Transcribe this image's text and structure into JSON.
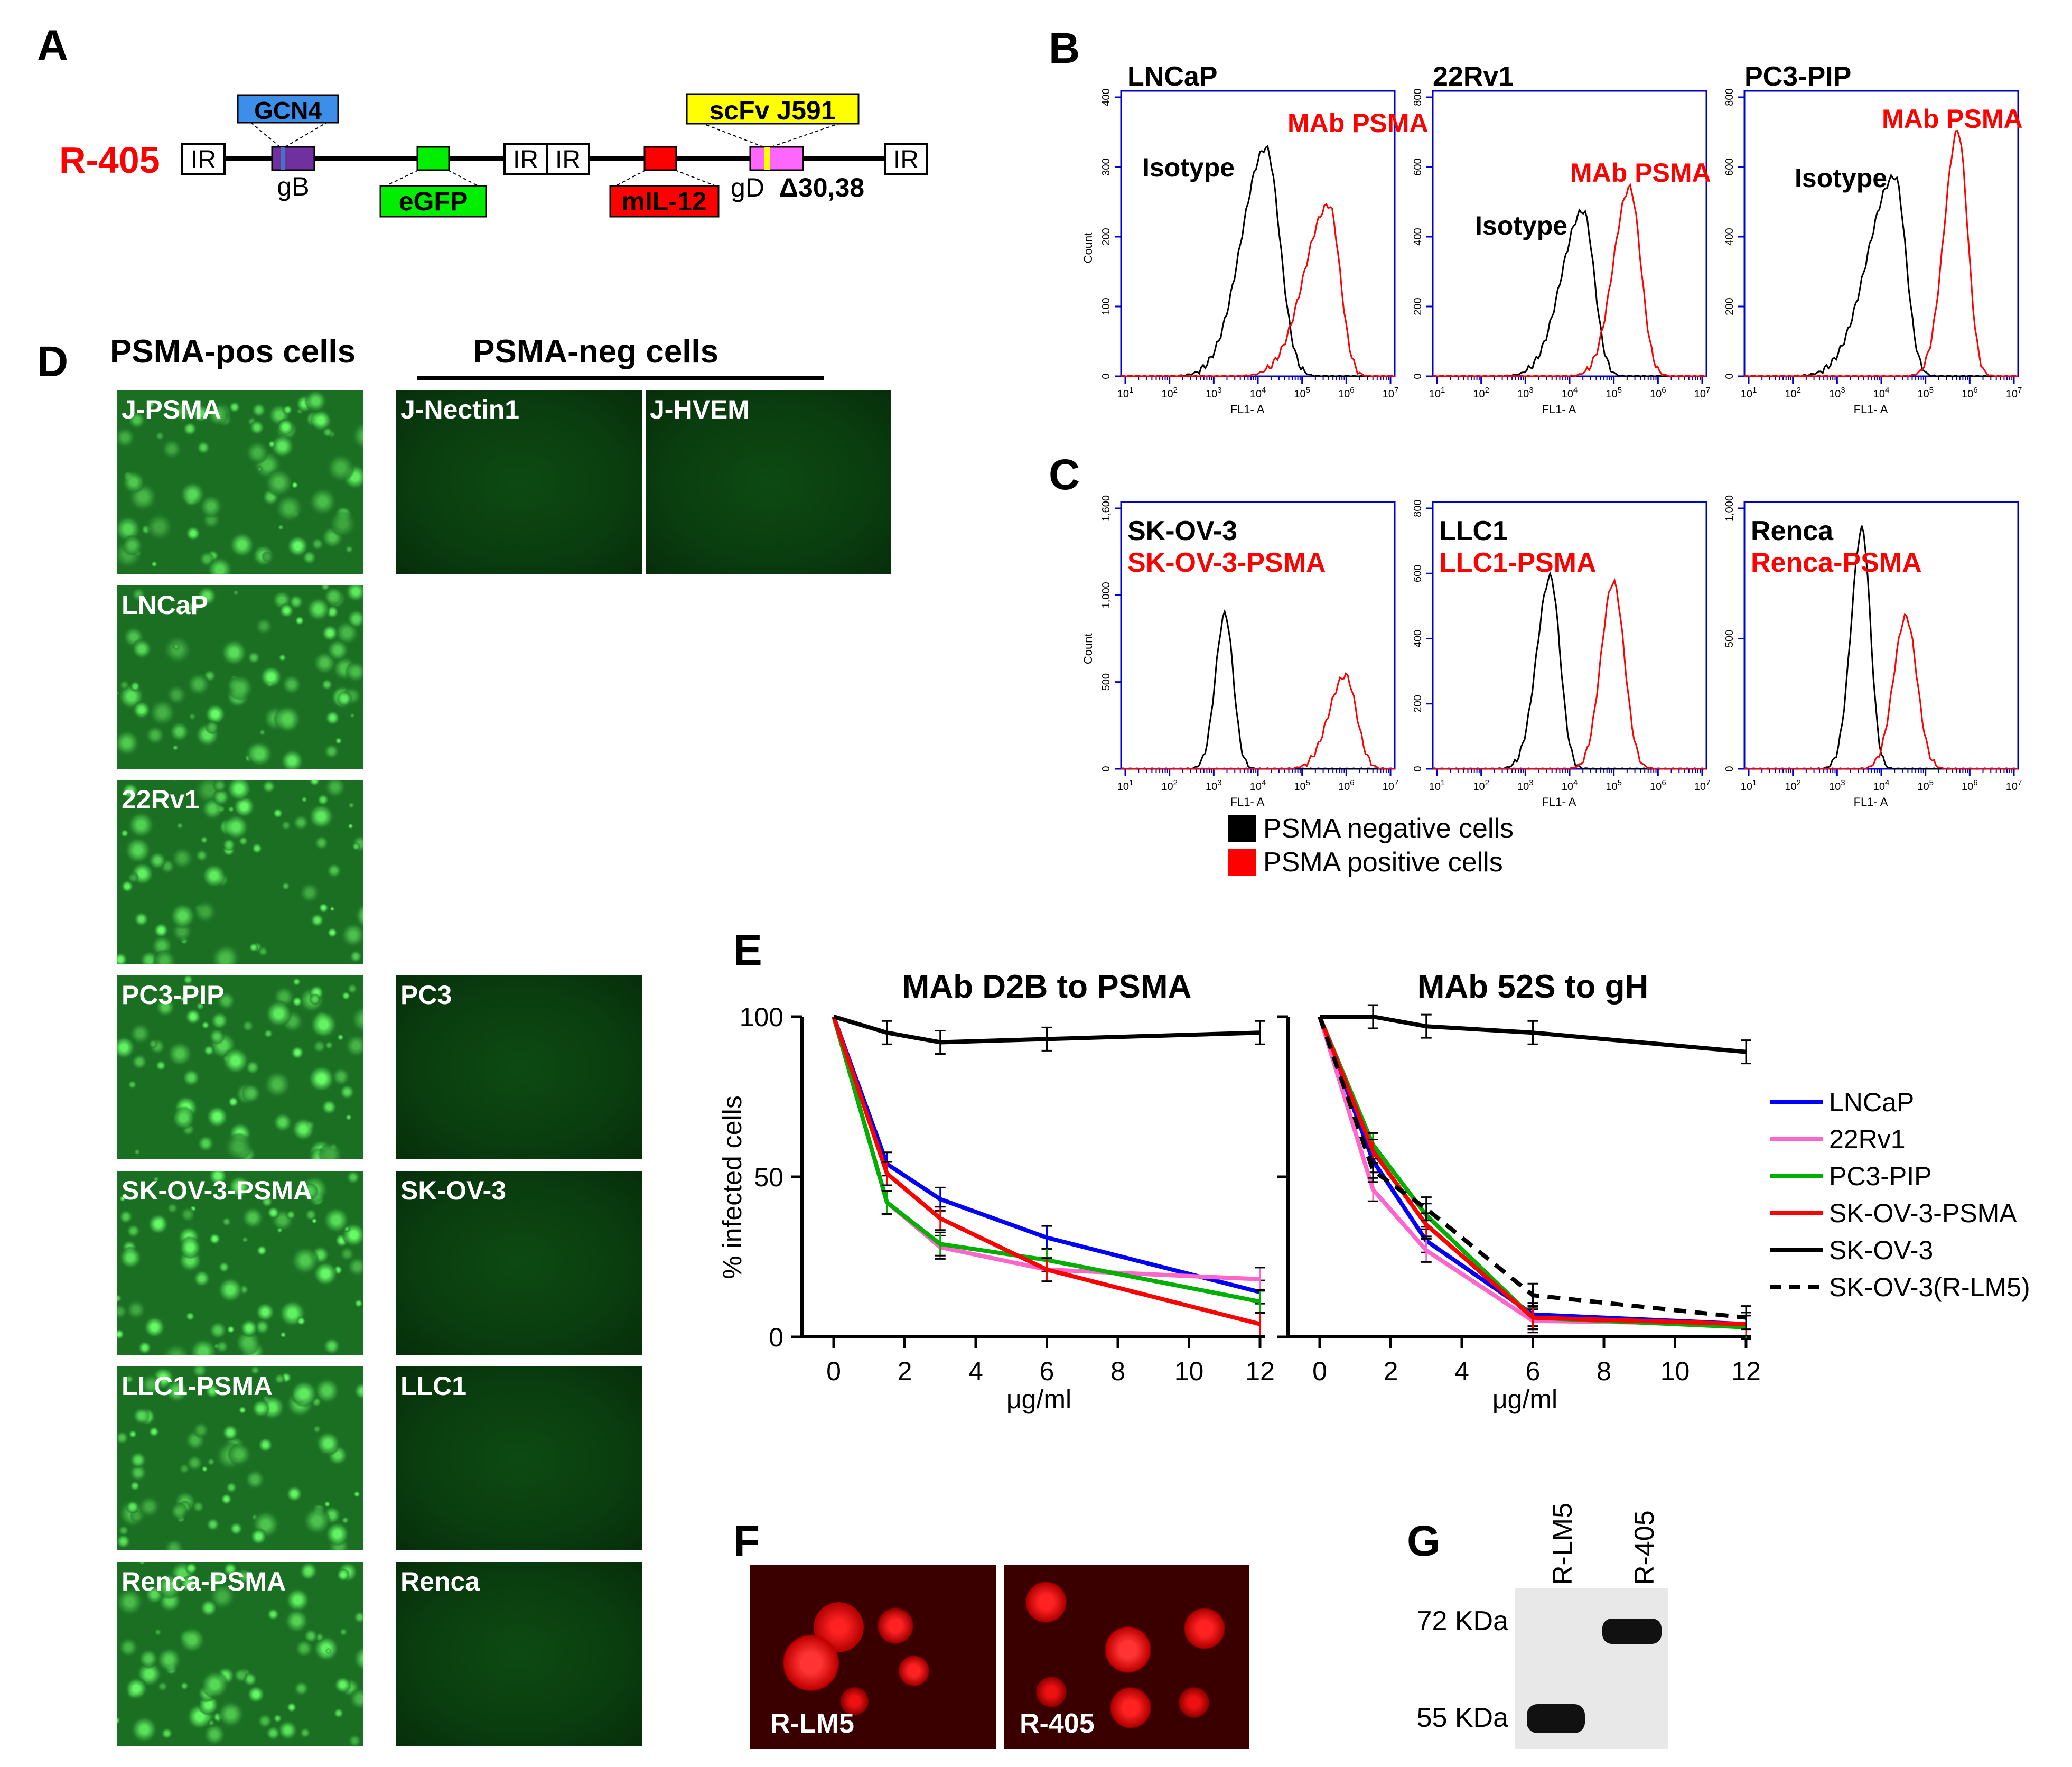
{
  "panels": {
    "a": "A",
    "b": "B",
    "c": "C",
    "d": "D",
    "e": "E",
    "f": "F",
    "g": "G"
  },
  "construct": {
    "name": "R-405",
    "ir": "IR",
    "gcn4": "GCN4",
    "gb": "gB",
    "egfp": "eGFP",
    "mil12": "mIL-12",
    "scfv": "scFv J591",
    "gd": "gD",
    "delta": "Δ30,38"
  },
  "flow_common": {
    "count_label": "Count",
    "xlabel": "FL1- A",
    "xticks": [
      "10^1",
      "10^2",
      "10^3",
      "10^4",
      "10^5",
      "10^6",
      "10^7"
    ]
  },
  "flow_b": [
    {
      "title": "LNCaP",
      "isotype": "Isotype",
      "mab": "MAb PSMA",
      "yticks": [
        "0",
        "100",
        "200",
        "300",
        "400"
      ],
      "show_count": true
    },
    {
      "title": "22Rv1",
      "isotype": "Isotype",
      "mab": "MAb PSMA",
      "yticks": [
        "0",
        "200",
        "400",
        "600",
        "800"
      ],
      "show_count": false
    },
    {
      "title": "PC3-PIP",
      "isotype": "Isotype",
      "mab": "MAb PSMA",
      "yticks": [
        "0",
        "200",
        "400",
        "600",
        "800"
      ],
      "show_count": false
    }
  ],
  "flow_c": [
    {
      "neg": "SK-OV-3",
      "pos": "SK-OV-3-PSMA",
      "yticks": [
        "0",
        "500",
        "1,000",
        "1,600"
      ],
      "show_count": true
    },
    {
      "neg": "LLC1",
      "pos": "LLC1-PSMA",
      "yticks": [
        "0",
        "200",
        "400",
        "600",
        "800"
      ],
      "show_count": false
    },
    {
      "neg": "Renca",
      "pos": "Renca-PSMA",
      "yticks": [
        "0",
        "500",
        "1,000"
      ],
      "show_count": false
    }
  ],
  "legend_c": {
    "neg": "PSMA negative cells",
    "pos": "PSMA positive cells",
    "neg_color": "#000000",
    "pos_color": "#ff0000"
  },
  "panel_d": {
    "pos_header": "PSMA-pos cells",
    "neg_header": "PSMA-neg cells",
    "pos_tiles": [
      "J-PSMA",
      "LNCaP",
      "22Rv1",
      "PC3-PIP",
      "SK-OV-3-PSMA",
      "LLC1-PSMA",
      "Renca-PSMA"
    ],
    "neg_tiles": [
      {
        "label": "J-Nectin1",
        "row": 0,
        "col": 1
      },
      {
        "label": "J-HVEM",
        "row": 0,
        "col": 2
      },
      {
        "label": "PC3",
        "row": 3,
        "col": 1
      },
      {
        "label": "SK-OV-3",
        "row": 4,
        "col": 1
      },
      {
        "label": "LLC1",
        "row": 5,
        "col": 1
      },
      {
        "label": "Renca",
        "row": 6,
        "col": 1
      }
    ]
  },
  "chart_data": [
    {
      "type": "line",
      "title": "MAb D2B to PSMA",
      "xlabel": "μg/ml",
      "ylabel": "% infected cells",
      "xlim": [
        0,
        12
      ],
      "ylim": [
        0,
        100
      ],
      "xticks": [
        0,
        2,
        4,
        6,
        8,
        10,
        12
      ],
      "yticks": [
        0,
        50,
        100
      ],
      "x": [
        0,
        1.5,
        3,
        6,
        12
      ],
      "series": [
        {
          "name": "LNCaP",
          "color": "#0000ff",
          "dashed": false,
          "values": [
            100,
            54,
            43,
            31,
            14
          ]
        },
        {
          "name": "22Rv1",
          "color": "#ff66cc",
          "dashed": false,
          "values": [
            100,
            42,
            28,
            21,
            18
          ]
        },
        {
          "name": "PC3-PIP",
          "color": "#00b000",
          "dashed": false,
          "values": [
            100,
            42,
            29,
            24,
            11
          ]
        },
        {
          "name": "SK-OV-3-PSMA",
          "color": "#ff0000",
          "dashed": false,
          "values": [
            100,
            51,
            37,
            21,
            4
          ]
        },
        {
          "name": "SK-OV-3",
          "color": "#000000",
          "dashed": false,
          "values": [
            100,
            95,
            92,
            93,
            95
          ]
        }
      ]
    },
    {
      "type": "line",
      "title": "MAb 52S to gH",
      "xlabel": "μg/ml",
      "ylabel": "",
      "xlim": [
        0,
        12
      ],
      "ylim": [
        0,
        100
      ],
      "xticks": [
        0,
        2,
        4,
        6,
        8,
        10,
        12
      ],
      "yticks": [
        0,
        50,
        100
      ],
      "x": [
        0,
        1.5,
        3,
        6,
        12
      ],
      "series": [
        {
          "name": "LNCaP",
          "color": "#0000ff",
          "dashed": false,
          "values": [
            100,
            55,
            30,
            7,
            4
          ]
        },
        {
          "name": "22Rv1",
          "color": "#ff66cc",
          "dashed": false,
          "values": [
            100,
            46,
            27,
            5,
            4
          ]
        },
        {
          "name": "PC3-PIP",
          "color": "#00b000",
          "dashed": false,
          "values": [
            100,
            60,
            38,
            6,
            3
          ]
        },
        {
          "name": "SK-OV-3-PSMA",
          "color": "#ff0000",
          "dashed": false,
          "values": [
            100,
            58,
            35,
            6,
            4
          ]
        },
        {
          "name": "SK-OV-3",
          "color": "#000000",
          "dashed": false,
          "values": [
            100,
            100,
            97,
            95,
            89
          ]
        },
        {
          "name": "SK-OV-3(R-LM5)",
          "color": "#000000",
          "dashed": true,
          "values": [
            100,
            52,
            40,
            13,
            6
          ]
        }
      ]
    }
  ],
  "panel_f": {
    "left": "R-LM5",
    "right": "R-405"
  },
  "panel_g": {
    "lane1": "R-LM5",
    "lane2": "R-405",
    "mw_high": "72 KDa",
    "mw_low": "55 KDa"
  }
}
